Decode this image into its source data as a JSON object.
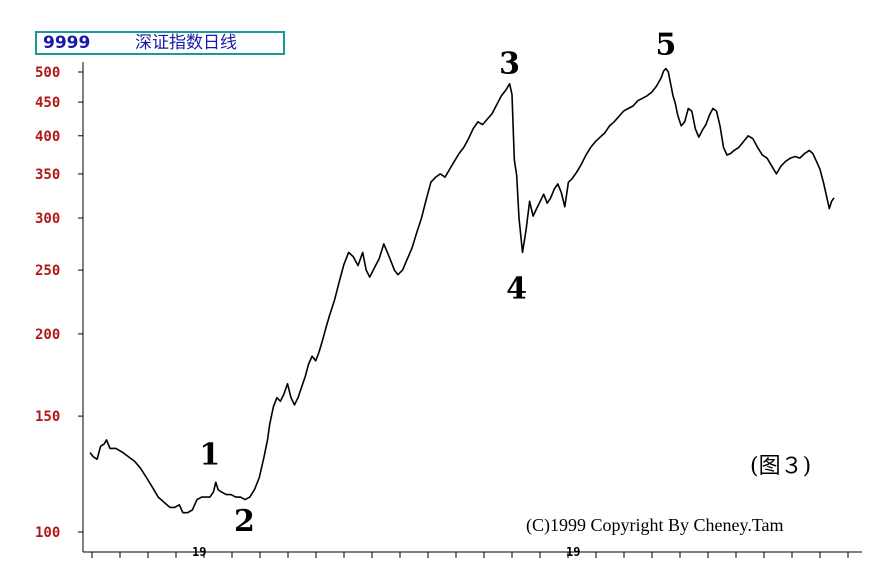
{
  "header": {
    "code": "9999",
    "name": "深证指数日线"
  },
  "figure_tag": "(图３)",
  "copyright": "(C)1999 Copyright By Cheney.Tam",
  "x_markers": [
    "19",
    "19"
  ],
  "colors": {
    "title_text": "#1a1aa8",
    "title_border": "#1a9a9a",
    "tick_labels": "#b01818",
    "line": "#000000"
  },
  "chart_data": {
    "type": "line",
    "title": "深证指数日线",
    "y_scale": "log",
    "ylim": [
      95,
      510
    ],
    "y_ticks": [
      100,
      150,
      200,
      250,
      300,
      350,
      400,
      450,
      500
    ],
    "y_tick_labels": [
      "100",
      "150",
      "200",
      "250",
      "300",
      "350",
      "400",
      "450",
      "500"
    ],
    "x_tick_labels": [
      "19",
      "19"
    ],
    "grid": false,
    "legend": "none",
    "series": [
      {
        "values": [
          [
            0,
            132
          ],
          [
            3,
            130
          ],
          [
            6,
            129
          ],
          [
            9,
            135
          ],
          [
            12,
            136
          ],
          [
            14,
            138
          ],
          [
            17,
            134
          ],
          [
            22,
            134
          ],
          [
            28,
            132
          ],
          [
            33,
            130
          ],
          [
            38,
            128
          ],
          [
            43,
            125
          ],
          [
            48,
            121
          ],
          [
            53,
            117
          ],
          [
            58,
            113
          ],
          [
            63,
            111
          ],
          [
            68,
            109
          ],
          [
            72,
            109
          ],
          [
            76,
            110
          ],
          [
            79,
            107
          ],
          [
            83,
            107
          ],
          [
            87,
            108
          ],
          [
            91,
            112
          ],
          [
            95,
            113
          ],
          [
            98,
            113
          ],
          [
            102,
            113
          ],
          [
            105,
            115
          ],
          [
            107,
            119
          ],
          [
            109,
            116
          ],
          [
            112,
            115
          ],
          [
            116,
            114
          ],
          [
            120,
            114
          ],
          [
            124,
            113
          ],
          [
            128,
            113
          ],
          [
            132,
            112
          ],
          [
            136,
            113
          ],
          [
            140,
            116
          ],
          [
            144,
            121
          ],
          [
            148,
            130
          ],
          [
            151,
            138
          ],
          [
            153,
            146
          ],
          [
            156,
            155
          ],
          [
            159,
            160
          ],
          [
            162,
            158
          ],
          [
            165,
            162
          ],
          [
            168,
            168
          ],
          [
            171,
            160
          ],
          [
            174,
            156
          ],
          [
            177,
            160
          ],
          [
            180,
            166
          ],
          [
            183,
            172
          ],
          [
            186,
            180
          ],
          [
            189,
            185
          ],
          [
            192,
            182
          ],
          [
            195,
            188
          ],
          [
            198,
            196
          ],
          [
            201,
            205
          ],
          [
            204,
            214
          ],
          [
            208,
            225
          ],
          [
            212,
            240
          ],
          [
            216,
            255
          ],
          [
            220,
            266
          ],
          [
            224,
            262
          ],
          [
            228,
            254
          ],
          [
            232,
            266
          ],
          [
            235,
            250
          ],
          [
            238,
            244
          ],
          [
            242,
            252
          ],
          [
            246,
            260
          ],
          [
            250,
            274
          ],
          [
            253,
            266
          ],
          [
            256,
            258
          ],
          [
            259,
            250
          ],
          [
            262,
            246
          ],
          [
            266,
            250
          ],
          [
            270,
            260
          ],
          [
            274,
            270
          ],
          [
            278,
            285
          ],
          [
            282,
            300
          ],
          [
            286,
            320
          ],
          [
            290,
            340
          ],
          [
            294,
            346
          ],
          [
            298,
            350
          ],
          [
            302,
            346
          ],
          [
            306,
            356
          ],
          [
            310,
            366
          ],
          [
            314,
            376
          ],
          [
            318,
            384
          ],
          [
            322,
            396
          ],
          [
            326,
            410
          ],
          [
            330,
            420
          ],
          [
            334,
            416
          ],
          [
            338,
            424
          ],
          [
            342,
            432
          ],
          [
            346,
            446
          ],
          [
            350,
            460
          ],
          [
            354,
            470
          ],
          [
            357,
            480
          ],
          [
            359,
            462
          ],
          [
            361,
            368
          ],
          [
            363,
            348
          ],
          [
            365,
            300
          ],
          [
            368,
            266
          ],
          [
            371,
            288
          ],
          [
            374,
            318
          ],
          [
            377,
            302
          ],
          [
            380,
            310
          ],
          [
            383,
            318
          ],
          [
            386,
            326
          ],
          [
            389,
            316
          ],
          [
            392,
            322
          ],
          [
            395,
            332
          ],
          [
            398,
            338
          ],
          [
            401,
            328
          ],
          [
            404,
            312
          ],
          [
            407,
            340
          ],
          [
            410,
            344
          ],
          [
            414,
            352
          ],
          [
            418,
            362
          ],
          [
            422,
            374
          ],
          [
            426,
            384
          ],
          [
            430,
            392
          ],
          [
            434,
            398
          ],
          [
            438,
            404
          ],
          [
            442,
            414
          ],
          [
            446,
            420
          ],
          [
            450,
            428
          ],
          [
            454,
            436
          ],
          [
            458,
            440
          ],
          [
            462,
            444
          ],
          [
            466,
            452
          ],
          [
            470,
            456
          ],
          [
            474,
            460
          ],
          [
            478,
            466
          ],
          [
            482,
            476
          ],
          [
            486,
            490
          ],
          [
            488,
            502
          ],
          [
            490,
            506
          ],
          [
            492,
            500
          ],
          [
            494,
            480
          ],
          [
            496,
            460
          ],
          [
            498,
            448
          ],
          [
            500,
            430
          ],
          [
            503,
            414
          ],
          [
            506,
            420
          ],
          [
            509,
            440
          ],
          [
            512,
            436
          ],
          [
            515,
            410
          ],
          [
            518,
            398
          ],
          [
            521,
            408
          ],
          [
            524,
            416
          ],
          [
            527,
            430
          ],
          [
            530,
            440
          ],
          [
            533,
            436
          ],
          [
            536,
            414
          ],
          [
            539,
            384
          ],
          [
            542,
            374
          ],
          [
            545,
            376
          ],
          [
            548,
            380
          ],
          [
            552,
            384
          ],
          [
            556,
            392
          ],
          [
            560,
            400
          ],
          [
            564,
            396
          ],
          [
            568,
            384
          ],
          [
            572,
            374
          ],
          [
            576,
            370
          ],
          [
            580,
            360
          ],
          [
            584,
            350
          ],
          [
            588,
            360
          ],
          [
            592,
            366
          ],
          [
            596,
            370
          ],
          [
            600,
            372
          ],
          [
            604,
            370
          ],
          [
            608,
            376
          ],
          [
            612,
            380
          ],
          [
            615,
            376
          ],
          [
            618,
            366
          ],
          [
            621,
            356
          ],
          [
            624,
            340
          ],
          [
            627,
            322
          ],
          [
            629,
            310
          ],
          [
            631,
            318
          ],
          [
            633,
            322
          ]
        ]
      }
    ],
    "annotations": [
      {
        "label": "1",
        "x": 107,
        "y": 119
      },
      {
        "label": "2",
        "x": 128,
        "y": 113
      },
      {
        "label": "3",
        "x": 357,
        "y": 480
      },
      {
        "label": "4",
        "x": 368,
        "y": 266
      },
      {
        "label": "5",
        "x": 490,
        "y": 506
      }
    ]
  }
}
